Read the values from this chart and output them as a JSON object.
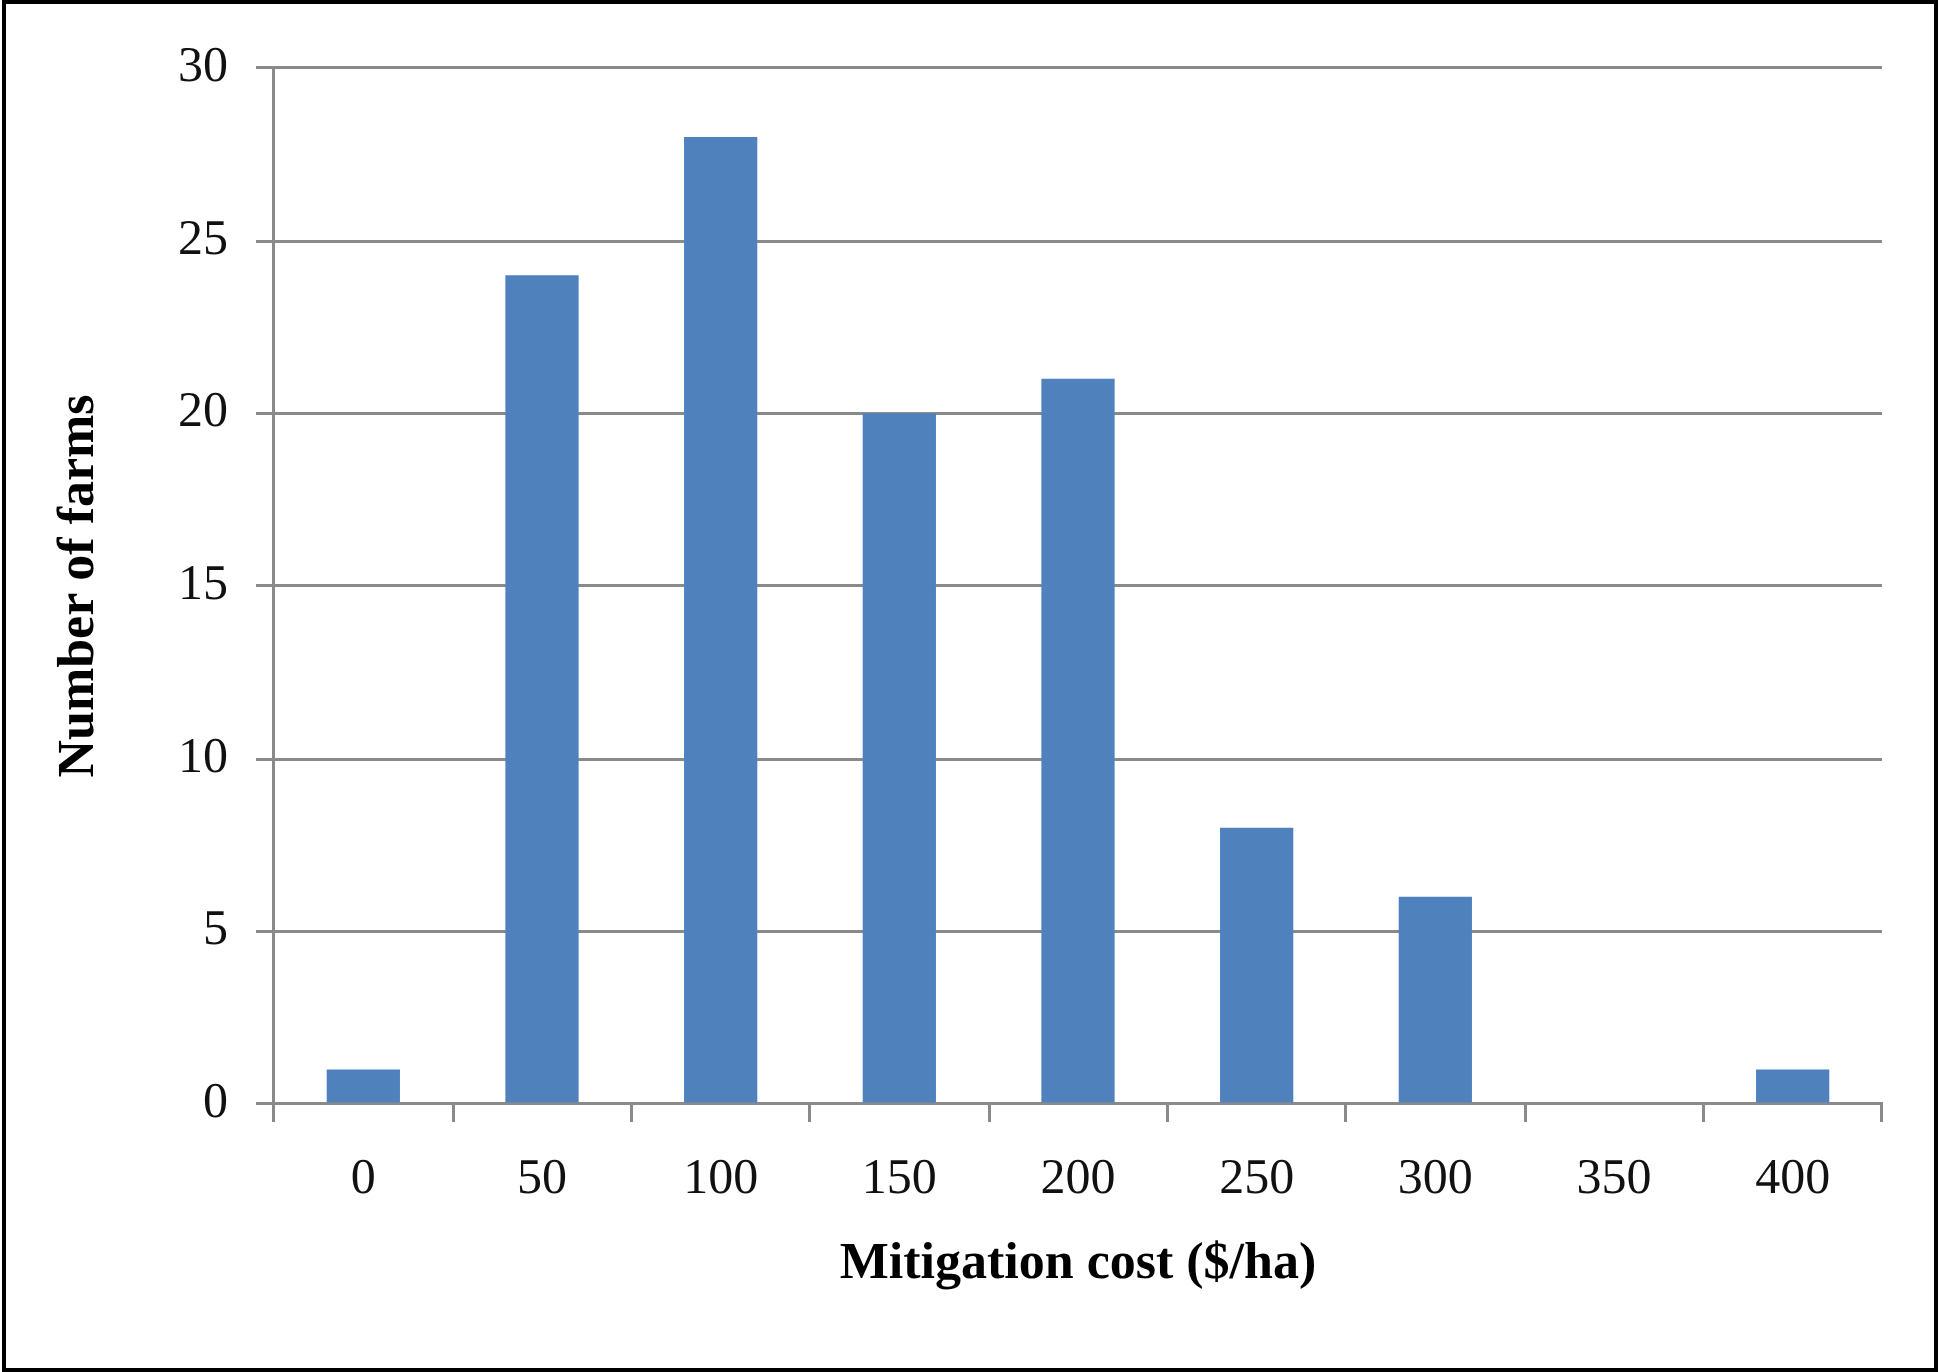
{
  "chart_data": {
    "type": "bar",
    "categories": [
      "0",
      "50",
      "100",
      "150",
      "200",
      "250",
      "300",
      "350",
      "400"
    ],
    "values": [
      1,
      24,
      28,
      20,
      21,
      8,
      6,
      0,
      1
    ],
    "color": "#4f81bd",
    "xlabel": "Mitigation cost ($/ha)",
    "ylabel": "Number of farms",
    "ylim": [
      0,
      30
    ],
    "yticks": [
      0,
      5,
      10,
      15,
      20,
      25,
      30
    ],
    "grid": "y"
  }
}
